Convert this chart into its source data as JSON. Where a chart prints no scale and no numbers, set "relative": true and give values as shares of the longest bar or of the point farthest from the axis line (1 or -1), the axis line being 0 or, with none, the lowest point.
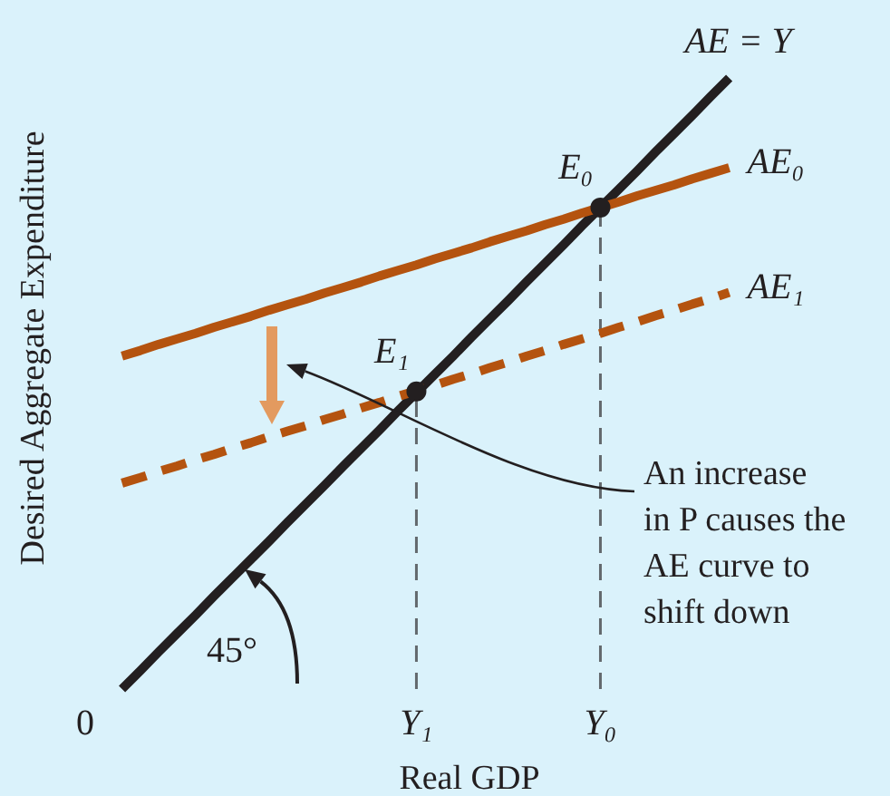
{
  "chart_data": {
    "type": "line",
    "xlabel": "Real GDP",
    "ylabel": "Desired Aggregate Expenditure",
    "relative": true,
    "tick_labels": "x",
    "categories": [
      "0",
      null,
      null,
      null,
      null,
      null,
      null,
      null,
      null,
      null,
      null,
      null,
      null,
      null,
      null,
      null,
      null,
      null,
      "Y₁",
      null,
      null,
      null,
      null,
      null,
      null,
      null,
      null,
      null,
      "Y₀",
      null,
      null,
      null,
      null,
      null,
      null,
      null
    ],
    "series": [
      {
        "name": "AE = Y",
        "color": "#231f20",
        "values": [
          null,
          null,
          0,
          0.03,
          0.061,
          0.091,
          0.121,
          0.152,
          0.182,
          0.212,
          0.242,
          0.273,
          0.303,
          0.333,
          0.364,
          0.394,
          0.424,
          0.455,
          0.485,
          0.515,
          0.545,
          0.576,
          0.606,
          0.636,
          0.667,
          0.697,
          0.727,
          0.758,
          0.788,
          0.818,
          0.848,
          0.879,
          0.909,
          0.939,
          0.97,
          1
        ]
      },
      {
        "name": "AE₀",
        "color": "#b4530f",
        "values": [
          null,
          null,
          0.545,
          0.554,
          0.564,
          0.573,
          0.582,
          0.592,
          0.601,
          0.61,
          0.62,
          0.629,
          0.638,
          0.648,
          0.657,
          0.666,
          0.676,
          0.685,
          0.694,
          0.704,
          0.713,
          0.722,
          0.732,
          0.741,
          0.75,
          0.76,
          0.769,
          0.779,
          0.788,
          0.797,
          0.807,
          0.816,
          0.825,
          0.835,
          0.844,
          0.853
        ]
      },
      {
        "name": "AE₁",
        "color": "#b4530f",
        "line_style": "dashed",
        "values": [
          null,
          null,
          0.337,
          0.346,
          0.356,
          0.365,
          0.375,
          0.384,
          0.394,
          0.403,
          0.413,
          0.422,
          0.431,
          0.441,
          0.45,
          0.46,
          0.469,
          0.479,
          0.488,
          0.497,
          0.507,
          0.516,
          0.526,
          0.535,
          0.545,
          0.554,
          0.564,
          0.573,
          0.582,
          0.592,
          0.601,
          0.611,
          0.62,
          0.63,
          0.639,
          0.649
        ]
      },
      {
        "type": "lollipop",
        "color": "#231f20",
        "marker": "circle",
        "line_style": "dashed",
        "values": [
          null,
          null,
          null,
          null,
          null,
          null,
          null,
          null,
          null,
          null,
          null,
          null,
          null,
          null,
          null,
          null,
          null,
          null,
          0.487,
          null,
          null,
          null,
          null,
          null,
          null,
          null,
          null,
          null,
          0.788,
          null,
          null,
          null,
          null,
          null,
          null,
          null
        ]
      }
    ],
    "annotations": [
      {
        "text": "E₀",
        "x": "Y₀",
        "y": 0.788
      },
      {
        "text": "E₁",
        "x": "Y₁",
        "y": 0.487
      },
      "45°",
      "An increase\nin P causes the\nAE curve to\nshift down"
    ]
  }
}
